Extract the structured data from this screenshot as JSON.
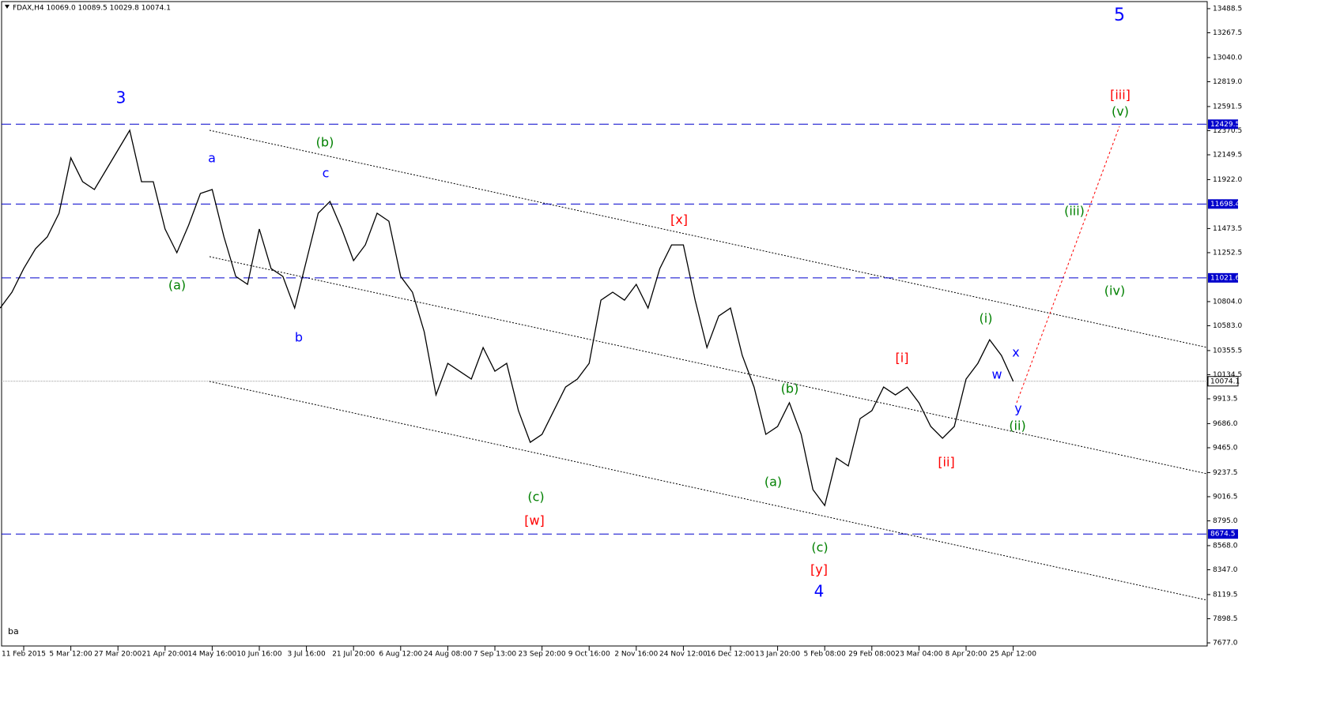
{
  "chart_data": {
    "type": "line",
    "title": "FDAX,H4  10069.0 10089.5 10029.8 10074.1",
    "footer": "ba",
    "color": "#000000",
    "categories": [
      null,
      null,
      "11 Feb 2015",
      null,
      null,
      null,
      "5 Mar 12:00",
      null,
      null,
      null,
      "27 Mar 20:00",
      null,
      null,
      null,
      "21 Apr 20:00",
      null,
      null,
      null,
      "14 May 16:00",
      null,
      null,
      null,
      "10 Jun 16:00",
      null,
      null,
      null,
      "3 Jul 16:00",
      null,
      null,
      null,
      "21 Jul 20:00",
      null,
      null,
      null,
      "6 Aug 12:00",
      null,
      null,
      null,
      "24 Aug 08:00",
      null,
      null,
      null,
      "7 Sep 13:00",
      null,
      null,
      null,
      "23 Sep 20:00",
      null,
      null,
      null,
      "9 Oct 16:00",
      null,
      null,
      null,
      "2 Nov 16:00",
      null,
      null,
      null,
      "24 Nov 12:00",
      null,
      null,
      null,
      "16 Dec 12:00",
      null,
      null,
      null,
      "13 Jan 20:00",
      null,
      null,
      null,
      "5 Feb 08:00",
      null,
      null,
      null,
      "29 Feb 08:00",
      null,
      null,
      null,
      "23 Mar 04:00",
      null,
      null,
      null,
      "8 Apr 20:00",
      null,
      null,
      null,
      "25 Apr 12:00"
    ],
    "values": [
      10745,
      10890,
      11107,
      11288,
      11397,
      11614,
      12121,
      11903,
      11831,
      12012,
      12193,
      12374,
      11903,
      11903,
      11469,
      11252,
      11505,
      11795,
      11831,
      11397,
      11035,
      10962,
      11469,
      11107,
      11035,
      10745,
      11180,
      11614,
      11722,
      11469,
      11180,
      11324,
      11614,
      11541,
      11035,
      10890,
      10528,
      9949,
      10238,
      10166,
      10094,
      10383,
      10166,
      10238,
      9804,
      9515,
      9588,
      9804,
      10021,
      10094,
      10238,
      10817,
      10890,
      10817,
      10962,
      10745,
      11107,
      11324,
      11324,
      10817,
      10383,
      10672,
      10745,
      10311,
      10021,
      9588,
      9660,
      9877,
      9588,
      9081,
      8936,
      9370,
      9298,
      9732,
      9804,
      10021,
      9949,
      10021,
      9877,
      9660,
      9552,
      9660,
      10094,
      10238,
      10455,
      10311,
      10074.1
    ],
    "ylim": [
      7634,
      13546
    ],
    "yticks": [
      13488.5,
      13267.5,
      {
        "value": 13040,
        "label": "13040.0"
      },
      {
        "value": 12819,
        "label": "12819.0"
      },
      12591.5,
      12370.5,
      12149.5,
      {
        "value": 11922,
        "label": "11922.0"
      },
      11473.5,
      11252.5,
      {
        "value": 10804,
        "label": "10804.0"
      },
      {
        "value": 10583,
        "label": "10583.0"
      },
      10355.5,
      10134.5,
      9913.5,
      {
        "value": 9686,
        "label": "9686.0"
      },
      {
        "value": 9465,
        "label": "9465.0"
      },
      9237.5,
      9016.5,
      {
        "value": 8795,
        "label": "8795.0"
      },
      {
        "value": 8568,
        "label": "8568.0"
      },
      {
        "value": 8347,
        "label": "8347.0"
      },
      8119.5,
      7898.5,
      {
        "value": 7677,
        "label": "7677.0"
      }
    ],
    "hlines": [
      12429.5,
      11698.4,
      11021.6,
      8674.5
    ],
    "last_price": 10074.1,
    "annotations": [
      {
        "text": "5",
        "color": "#0000ff"
      },
      {
        "text": "3",
        "color": "#0000ff"
      },
      {
        "text": "a",
        "color": "#0000ff"
      },
      {
        "text": "c",
        "color": "#0000ff"
      },
      {
        "text": "(b)",
        "color": "#008000"
      },
      {
        "text": "(a)",
        "color": "#008000"
      },
      {
        "text": "b",
        "color": "#0000ff"
      },
      {
        "text": "[x]",
        "color": "#ff0000"
      },
      {
        "text": "(c)",
        "color": "#008000"
      },
      {
        "text": "[w]",
        "color": "#ff0000"
      },
      {
        "text": "(b)",
        "color": "#008000"
      },
      {
        "text": "(a)",
        "color": "#008000"
      },
      {
        "text": "(c)",
        "color": "#008000"
      },
      {
        "text": "[y]",
        "color": "#ff0000"
      },
      {
        "text": "4",
        "color": "#0000ff"
      },
      {
        "text": "[i]",
        "color": "#ff0000"
      },
      {
        "text": "[ii]",
        "color": "#ff0000"
      },
      {
        "text": "(i)",
        "color": "#008000"
      },
      {
        "text": "x",
        "color": "#0000ff"
      },
      {
        "text": "w",
        "color": "#0000ff"
      },
      {
        "text": "y",
        "color": "#0000ff"
      },
      {
        "text": "(ii)",
        "color": "#008000"
      },
      {
        "text": "[iii]",
        "color": "#ff0000"
      },
      {
        "text": "(v)",
        "color": "#008000"
      },
      {
        "text": "(iii)",
        "color": "#008000"
      },
      {
        "text": "(iv)",
        "color": "#008000"
      }
    ]
  }
}
